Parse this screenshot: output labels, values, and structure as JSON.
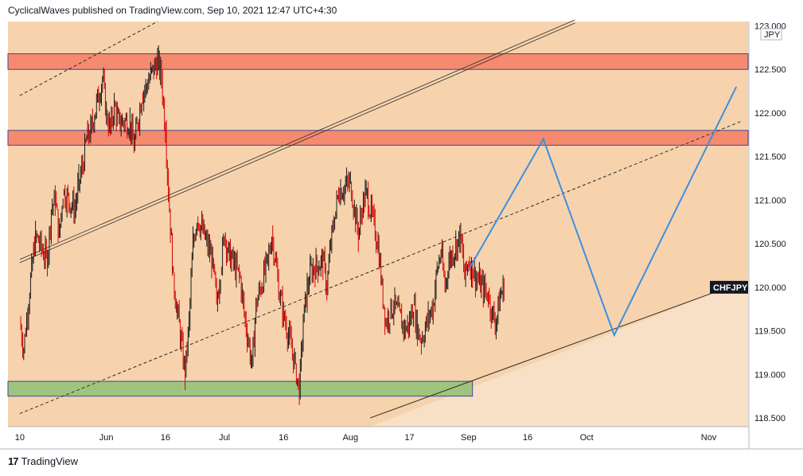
{
  "header": {
    "text": "CyclicalWaves published on TradingView.com, Sep 10, 2021 12:47 UTC+4:30"
  },
  "footer": {
    "logo": "17",
    "brand": "TradingView"
  },
  "chart_data": {
    "type": "candlestick",
    "symbol_label": "CHFJPY",
    "currency": "JPY",
    "last_price": 120.0,
    "colors": {
      "background": "#f6d3ad",
      "background_light": "#f8e0c6",
      "up_candle": "#1a1a1a",
      "down_candle": "#d40000",
      "resistance_zone": "#f58a6f",
      "support_zone": "#9fc47e",
      "zone_border": "#3a4a9a",
      "projection": "#3c8fe0",
      "channel": "#2b2b2b"
    },
    "y_axis": {
      "range": [
        118.4,
        123.05
      ],
      "ticks": [
        "118.500",
        "119.000",
        "119.500",
        "120.000",
        "120.500",
        "121.000",
        "121.500",
        "122.000",
        "122.500",
        "123.000"
      ]
    },
    "x_axis": {
      "ticks": [
        "10",
        "Jun",
        "16",
        "Jul",
        "16",
        "Aug",
        "17",
        "Sep",
        "16",
        "Oct",
        "Nov"
      ]
    },
    "zones": [
      {
        "name": "resistance-upper",
        "low": 122.5,
        "high": 122.68
      },
      {
        "name": "resistance-lower",
        "low": 121.63,
        "high": 121.8
      },
      {
        "name": "support",
        "low": 118.75,
        "high": 118.92
      }
    ],
    "price_path": [
      [
        "2021-05-10",
        119.6
      ],
      [
        "2021-05-11",
        119.3
      ],
      [
        "2021-05-13",
        120.2
      ],
      [
        "2021-05-14",
        120.6
      ],
      [
        "2021-05-17",
        120.3
      ],
      [
        "2021-05-18",
        120.9
      ],
      [
        "2021-05-19",
        121.0
      ],
      [
        "2021-05-20",
        120.6
      ],
      [
        "2021-05-21",
        121.1
      ],
      [
        "2021-05-24",
        120.9
      ],
      [
        "2021-05-25",
        121.2
      ],
      [
        "2021-05-26",
        121.4
      ],
      [
        "2021-05-27",
        121.7
      ],
      [
        "2021-05-28",
        121.8
      ],
      [
        "2021-05-31",
        122.4
      ],
      [
        "2021-06-01",
        122.0
      ],
      [
        "2021-06-02",
        121.8
      ],
      [
        "2021-06-03",
        122.1
      ],
      [
        "2021-06-04",
        121.9
      ],
      [
        "2021-06-07",
        121.9
      ],
      [
        "2021-06-08",
        121.6
      ],
      [
        "2021-06-09",
        121.9
      ],
      [
        "2021-06-10",
        122.2
      ],
      [
        "2021-06-11",
        122.3
      ],
      [
        "2021-06-14",
        122.6
      ],
      [
        "2021-06-15",
        122.4
      ],
      [
        "2021-06-16",
        121.8
      ],
      [
        "2021-06-17",
        120.9
      ],
      [
        "2021-06-18",
        120.1
      ],
      [
        "2021-06-21",
        119.0
      ],
      [
        "2021-06-22",
        119.6
      ],
      [
        "2021-06-23",
        120.5
      ],
      [
        "2021-06-24",
        120.8
      ],
      [
        "2021-06-25",
        120.7
      ],
      [
        "2021-06-28",
        120.3
      ],
      [
        "2021-06-29",
        119.8
      ],
      [
        "2021-06-30",
        120.2
      ],
      [
        "2021-07-01",
        120.6
      ],
      [
        "2021-07-02",
        120.4
      ],
      [
        "2021-07-05",
        120.1
      ],
      [
        "2021-07-06",
        119.7
      ],
      [
        "2021-07-07",
        119.4
      ],
      [
        "2021-07-08",
        119.1
      ],
      [
        "2021-07-09",
        119.8
      ],
      [
        "2021-07-12",
        120.3
      ],
      [
        "2021-07-13",
        120.6
      ],
      [
        "2021-07-14",
        120.3
      ],
      [
        "2021-07-15",
        119.9
      ],
      [
        "2021-07-16",
        119.7
      ],
      [
        "2021-07-19",
        119.1
      ],
      [
        "2021-07-20",
        118.8
      ],
      [
        "2021-07-21",
        119.6
      ],
      [
        "2021-07-22",
        120.0
      ],
      [
        "2021-07-23",
        120.2
      ],
      [
        "2021-07-26",
        120.3
      ],
      [
        "2021-07-27",
        120.0
      ],
      [
        "2021-07-28",
        120.5
      ],
      [
        "2021-07-29",
        120.8
      ],
      [
        "2021-07-30",
        121.1
      ],
      [
        "2021-08-02",
        121.2
      ],
      [
        "2021-08-03",
        120.9
      ],
      [
        "2021-08-04",
        120.6
      ],
      [
        "2021-08-05",
        120.9
      ],
      [
        "2021-08-06",
        121.1
      ],
      [
        "2021-08-09",
        120.5
      ],
      [
        "2021-08-10",
        120.0
      ],
      [
        "2021-08-11",
        119.6
      ],
      [
        "2021-08-12",
        119.7
      ],
      [
        "2021-08-13",
        119.8
      ],
      [
        "2021-08-16",
        119.5
      ],
      [
        "2021-08-17",
        119.6
      ],
      [
        "2021-08-18",
        119.8
      ],
      [
        "2021-08-19",
        119.5
      ],
      [
        "2021-08-20",
        119.4
      ],
      [
        "2021-08-23",
        119.8
      ],
      [
        "2021-08-24",
        120.2
      ],
      [
        "2021-08-25",
        120.4
      ],
      [
        "2021-08-26",
        120.0
      ],
      [
        "2021-08-27",
        120.3
      ],
      [
        "2021-08-30",
        120.6
      ],
      [
        "2021-08-31",
        120.1
      ],
      [
        "2021-09-01",
        120.3
      ],
      [
        "2021-09-02",
        120.2
      ],
      [
        "2021-09-03",
        120.1
      ],
      [
        "2021-09-06",
        119.9
      ],
      [
        "2021-09-07",
        119.7
      ],
      [
        "2021-09-08",
        119.6
      ],
      [
        "2021-09-09",
        119.9
      ],
      [
        "2021-09-10",
        120.0
      ]
    ],
    "projection_path": [
      [
        "2021-09-01",
        120.2
      ],
      [
        "2021-09-20",
        121.7
      ],
      [
        "2021-10-08",
        119.45
      ],
      [
        "2021-11-08",
        122.3
      ]
    ],
    "channels": [
      {
        "style": "double",
        "from": [
          "2021-05-10",
          120.3
        ],
        "to": [
          "2021-09-28",
          123.05
        ]
      },
      {
        "style": "dashed",
        "from": [
          "2021-05-10",
          122.2
        ],
        "to": [
          "2021-06-14",
          123.05
        ]
      },
      {
        "style": "dashed",
        "from": [
          "2021-05-10",
          118.55
        ],
        "to": [
          "2021-11-09",
          121.9
        ]
      },
      {
        "style": "solid",
        "from": [
          "2021-08-07",
          118.5
        ],
        "to": [
          "2021-11-09",
          120.05
        ]
      }
    ]
  }
}
